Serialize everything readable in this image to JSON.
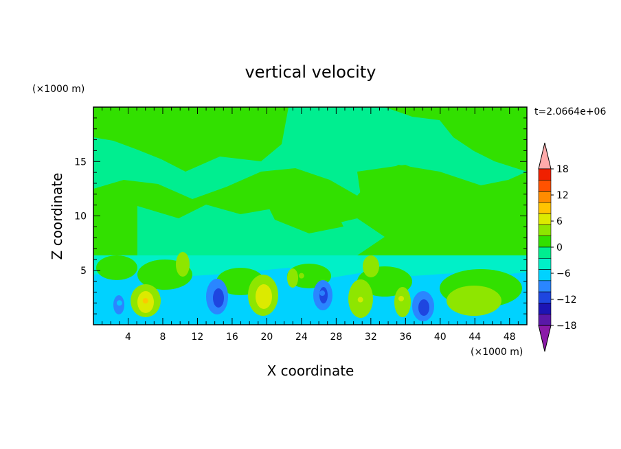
{
  "chart_data": {
    "type": "heatmap",
    "title": "vertical velocity",
    "xlabel": "X coordinate",
    "ylabel": "Z coordinate",
    "x_unit": "(×1000 m)",
    "y_unit": "(×1000 m)",
    "time_label": "t=2.0664e+06",
    "xlim": [
      0,
      50
    ],
    "ylim": [
      0,
      20
    ],
    "x_ticks": [
      4,
      8,
      12,
      16,
      20,
      24,
      28,
      32,
      36,
      40,
      44,
      48
    ],
    "y_ticks": [
      5,
      10,
      15
    ],
    "colorbar": {
      "levels": [
        -21,
        -18,
        -15,
        -12,
        -9,
        -6,
        -3,
        0,
        3,
        6,
        9,
        12,
        15,
        18,
        21
      ],
      "tick_labels": [
        "18",
        "12",
        "6",
        "0",
        "−6",
        "−12",
        "−18"
      ],
      "tick_values": [
        18,
        12,
        6,
        0,
        -6,
        -12,
        -18
      ],
      "colors": [
        "#8b1aa8",
        "#5a18a8",
        "#1c14b4",
        "#1e46e0",
        "#2a86ff",
        "#00d2ff",
        "#00f0c8",
        "#00ee90",
        "#32e000",
        "#8ee600",
        "#dcea00",
        "#ffc400",
        "#ff8c00",
        "#ff5200",
        "#f02000",
        "#ffaaaa"
      ]
    },
    "features": [
      {
        "x": 14.2,
        "z": 2.6,
        "value": -14
      },
      {
        "x": 38.1,
        "z": 1.8,
        "value": -15
      },
      {
        "x": 26.4,
        "z": 2.9,
        "value": -10
      },
      {
        "x": 3.0,
        "z": 2.0,
        "value": -7
      },
      {
        "x": 6.0,
        "z": 2.2,
        "value": 9
      },
      {
        "x": 19.6,
        "z": 2.9,
        "value": 7
      },
      {
        "x": 30.8,
        "z": 2.3,
        "value": 6
      },
      {
        "x": 35.5,
        "z": 2.4,
        "value": 6
      },
      {
        "x": 10.2,
        "z": 5.0,
        "value": 5
      },
      {
        "x": 24.0,
        "z": 4.5,
        "value": 5
      }
    ]
  }
}
